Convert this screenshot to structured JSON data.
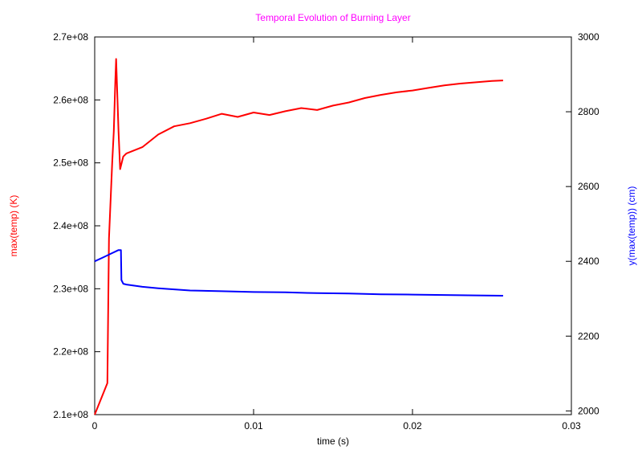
{
  "chart_data": {
    "type": "line",
    "title": "Temporal Evolution of Burning Layer",
    "xlabel": "time (s)",
    "ylabel_left": "max(temp) (K)",
    "ylabel_right": "y(max(temp)) (cm)",
    "xlim": [
      0,
      0.03
    ],
    "ylim_left": [
      210000000,
      270000000
    ],
    "ylim_right": [
      1990,
      3000
    ],
    "x_ticks": [
      {
        "value": 0,
        "label": "0"
      },
      {
        "value": 0.01,
        "label": "0.01"
      },
      {
        "value": 0.02,
        "label": "0.02"
      },
      {
        "value": 0.03,
        "label": "0.03"
      }
    ],
    "y_left_ticks": [
      {
        "value": 210000000,
        "label": "2.1e+08"
      },
      {
        "value": 220000000,
        "label": "2.2e+08"
      },
      {
        "value": 230000000,
        "label": "2.3e+08"
      },
      {
        "value": 240000000,
        "label": "2.4e+08"
      },
      {
        "value": 250000000,
        "label": "2.5e+08"
      },
      {
        "value": 260000000,
        "label": "2.6e+08"
      },
      {
        "value": 270000000,
        "label": "2.7e+08"
      }
    ],
    "y_right_ticks": [
      {
        "value": 2000,
        "label": "2000"
      },
      {
        "value": 2200,
        "label": "2200"
      },
      {
        "value": 2400,
        "label": "2400"
      },
      {
        "value": 2600,
        "label": "2600"
      },
      {
        "value": 2800,
        "label": "2800"
      },
      {
        "value": 3000,
        "label": "3000"
      }
    ],
    "grid": false,
    "legend": "none",
    "series": [
      {
        "axis": "left",
        "color": "#ff0000",
        "x": [
          0,
          0.0008,
          0.0009,
          0.0011,
          0.0012,
          0.0013,
          0.00135,
          0.0015,
          0.0016,
          0.0018,
          0.002,
          0.003,
          0.004,
          0.005,
          0.006,
          0.007,
          0.008,
          0.009,
          0.01,
          0.011,
          0.012,
          0.013,
          0.014,
          0.015,
          0.016,
          0.017,
          0.018,
          0.019,
          0.02,
          0.021,
          0.022,
          0.023,
          0.024,
          0.025,
          0.0257
        ],
        "y": [
          210000000,
          215000000,
          238000000,
          250000000,
          255000000,
          263000000,
          266500000,
          255000000,
          249000000,
          251000000,
          251500000,
          252500000,
          254500000,
          255800000,
          256300000,
          257000000,
          257800000,
          257300000,
          258000000,
          257600000,
          258200000,
          258700000,
          258400000,
          259100000,
          259600000,
          260300000,
          260800000,
          261200000,
          261500000,
          261900000,
          262300000,
          262600000,
          262800000,
          263000000,
          263100000
        ]
      },
      {
        "axis": "right",
        "color": "#0000ff",
        "x": [
          0,
          0.0005,
          0.001,
          0.0015,
          0.00165,
          0.00168,
          0.0018,
          0.002,
          0.003,
          0.004,
          0.005,
          0.006,
          0.008,
          0.01,
          0.012,
          0.014,
          0.016,
          0.018,
          0.02,
          0.022,
          0.024,
          0.0257
        ],
        "y": [
          2400,
          2410,
          2420,
          2430,
          2430,
          2350,
          2340,
          2338,
          2332,
          2328,
          2325,
          2322,
          2320,
          2318,
          2317,
          2315,
          2314,
          2312,
          2311,
          2310,
          2309,
          2308
        ]
      }
    ]
  }
}
